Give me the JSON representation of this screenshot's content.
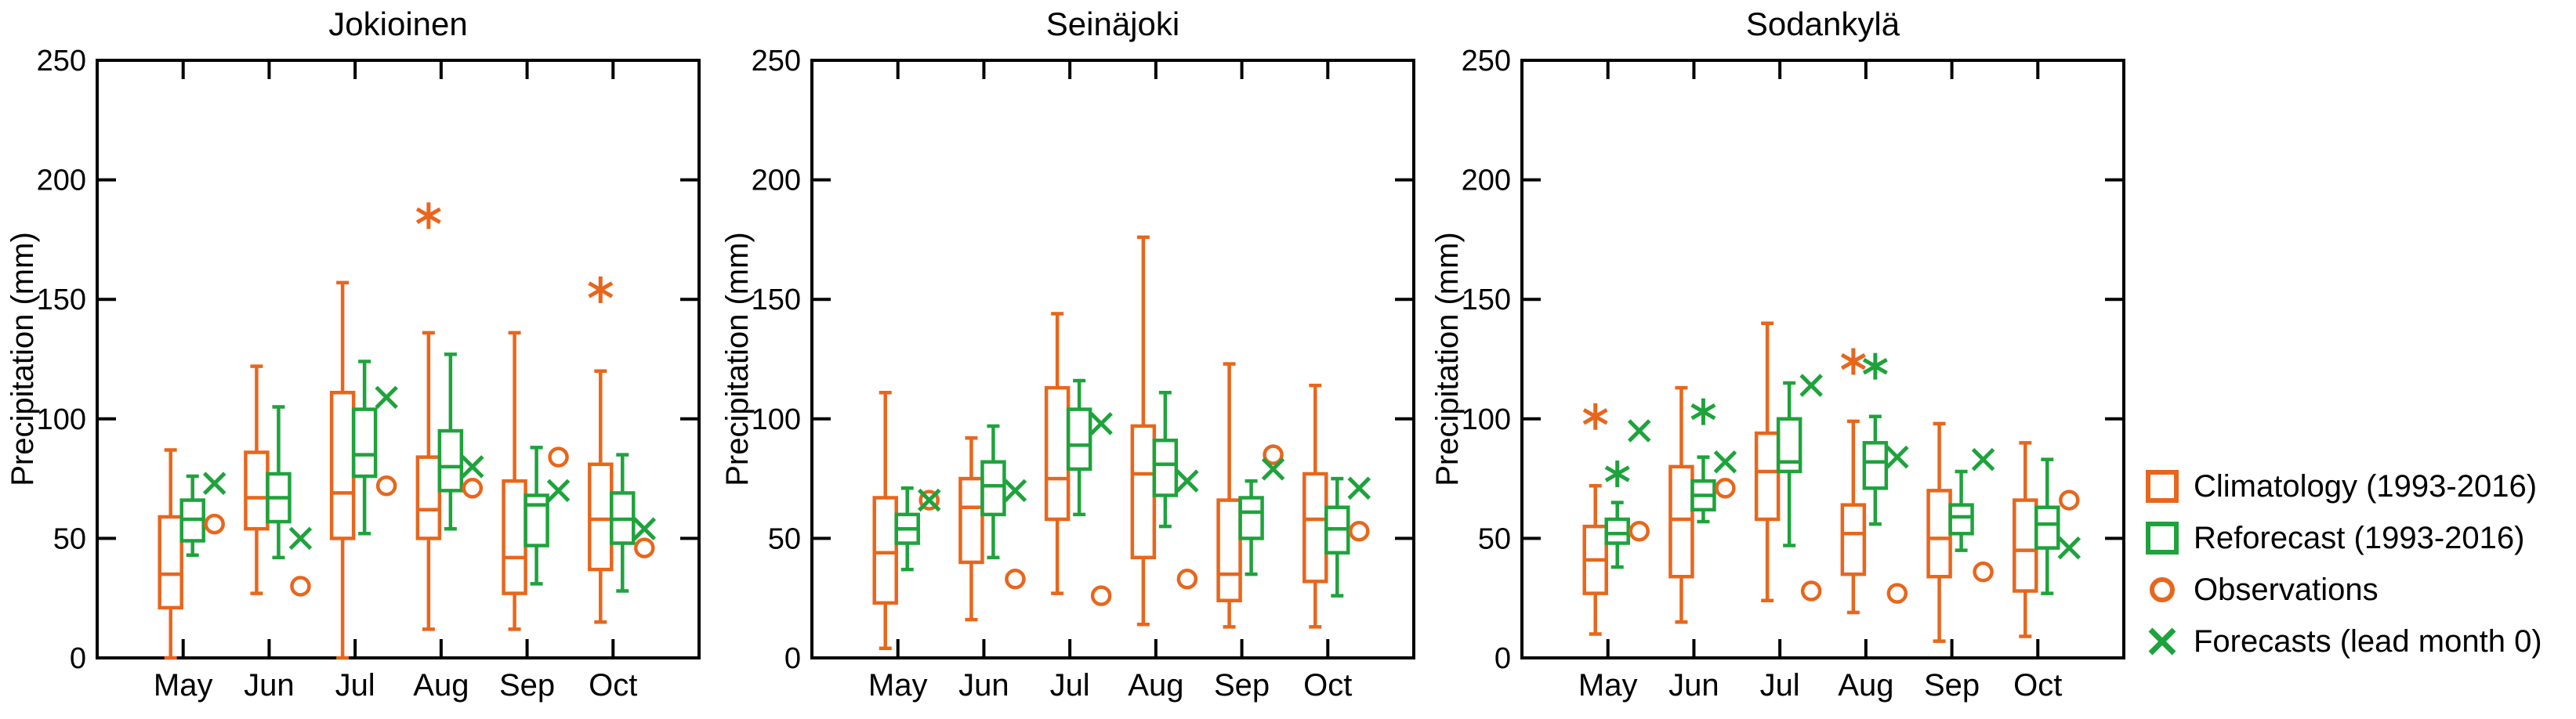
{
  "colors": {
    "climatology_orange": "#E8661C",
    "reforecast_green": "#1EA33C",
    "axis_black": "#000000",
    "background": "#FFFFFF"
  },
  "legend": {
    "items": [
      {
        "icon": "climatology-box-icon",
        "label": "Climatology (1993-2016)"
      },
      {
        "icon": "reforecast-box-icon",
        "label": "Reforecast (1993-2016)"
      },
      {
        "icon": "observations-circle-icon",
        "label": "Observations"
      },
      {
        "icon": "forecasts-x-icon",
        "label": "Forecasts (lead month 0)"
      }
    ]
  },
  "chart_data": {
    "type": "boxplot",
    "months": [
      "May",
      "Jun",
      "Jul",
      "Aug",
      "Sep",
      "Oct"
    ],
    "ylabel": "Precipitation (mm)",
    "ylim": [
      0,
      250
    ],
    "yticks": [
      0,
      50,
      100,
      150,
      200,
      250
    ],
    "grid": false,
    "legend_position": "right-outside",
    "panels": [
      {
        "title": "Jokioinen",
        "climatology": [
          {
            "lo": 0,
            "q1": 21,
            "med": 35,
            "q3": 59,
            "hi": 87,
            "out": []
          },
          {
            "lo": 27,
            "q1": 54,
            "med": 67,
            "q3": 86,
            "hi": 122,
            "out": []
          },
          {
            "lo": 0,
            "q1": 50,
            "med": 69,
            "q3": 111,
            "hi": 157,
            "out": []
          },
          {
            "lo": 12,
            "q1": 50,
            "med": 62,
            "q3": 84,
            "hi": 136,
            "out": [
              185
            ]
          },
          {
            "lo": 12,
            "q1": 27,
            "med": 42,
            "q3": 74,
            "hi": 136,
            "out": []
          },
          {
            "lo": 15,
            "q1": 37,
            "med": 58,
            "q3": 81,
            "hi": 120,
            "out": [
              154
            ]
          }
        ],
        "reforecast": [
          {
            "lo": 43,
            "q1": 49,
            "med": 58,
            "q3": 66,
            "hi": 76,
            "out": []
          },
          {
            "lo": 42,
            "q1": 57,
            "med": 67,
            "q3": 77,
            "hi": 105,
            "out": []
          },
          {
            "lo": 52,
            "q1": 76,
            "med": 85,
            "q3": 104,
            "hi": 124,
            "out": []
          },
          {
            "lo": 54,
            "q1": 70,
            "med": 80,
            "q3": 95,
            "hi": 127,
            "out": []
          },
          {
            "lo": 31,
            "q1": 47,
            "med": 64,
            "q3": 68,
            "hi": 88,
            "out": []
          },
          {
            "lo": 28,
            "q1": 48,
            "med": 58,
            "q3": 69,
            "hi": 85,
            "out": []
          }
        ],
        "observations": [
          56,
          30,
          72,
          71,
          84,
          46
        ],
        "forecasts": [
          73,
          50,
          109,
          80,
          70,
          54
        ]
      },
      {
        "title": "Seinäjoki",
        "climatology": [
          {
            "lo": 4,
            "q1": 23,
            "med": 44,
            "q3": 67,
            "hi": 111,
            "out": []
          },
          {
            "lo": 16,
            "q1": 40,
            "med": 63,
            "q3": 75,
            "hi": 92,
            "out": []
          },
          {
            "lo": 27,
            "q1": 58,
            "med": 75,
            "q3": 113,
            "hi": 144,
            "out": []
          },
          {
            "lo": 14,
            "q1": 42,
            "med": 77,
            "q3": 97,
            "hi": 176,
            "out": []
          },
          {
            "lo": 13,
            "q1": 24,
            "med": 35,
            "q3": 66,
            "hi": 123,
            "out": []
          },
          {
            "lo": 13,
            "q1": 32,
            "med": 58,
            "q3": 77,
            "hi": 114,
            "out": []
          }
        ],
        "reforecast": [
          {
            "lo": 37,
            "q1": 48,
            "med": 54,
            "q3": 60,
            "hi": 71,
            "out": []
          },
          {
            "lo": 42,
            "q1": 60,
            "med": 72,
            "q3": 82,
            "hi": 97,
            "out": []
          },
          {
            "lo": 60,
            "q1": 79,
            "med": 89,
            "q3": 104,
            "hi": 116,
            "out": []
          },
          {
            "lo": 55,
            "q1": 68,
            "med": 81,
            "q3": 91,
            "hi": 111,
            "out": []
          },
          {
            "lo": 35,
            "q1": 50,
            "med": 61,
            "q3": 67,
            "hi": 74,
            "out": []
          },
          {
            "lo": 26,
            "q1": 44,
            "med": 54,
            "q3": 63,
            "hi": 75,
            "out": []
          }
        ],
        "observations": [
          66,
          33,
          26,
          33,
          85,
          53
        ],
        "forecasts": [
          66,
          70,
          98,
          74,
          79,
          71
        ]
      },
      {
        "title": "Sodankylä",
        "climatology": [
          {
            "lo": 10,
            "q1": 27,
            "med": 41,
            "q3": 55,
            "hi": 72,
            "out": [
              101
            ]
          },
          {
            "lo": 15,
            "q1": 34,
            "med": 58,
            "q3": 80,
            "hi": 113,
            "out": []
          },
          {
            "lo": 24,
            "q1": 58,
            "med": 78,
            "q3": 94,
            "hi": 140,
            "out": []
          },
          {
            "lo": 19,
            "q1": 35,
            "med": 52,
            "q3": 64,
            "hi": 99,
            "out": [
              124
            ]
          },
          {
            "lo": 7,
            "q1": 34,
            "med": 50,
            "q3": 70,
            "hi": 98,
            "out": []
          },
          {
            "lo": 9,
            "q1": 28,
            "med": 45,
            "q3": 66,
            "hi": 90,
            "out": []
          }
        ],
        "reforecast": [
          {
            "lo": 38,
            "q1": 48,
            "med": 52,
            "q3": 58,
            "hi": 65,
            "out": [
              77
            ]
          },
          {
            "lo": 57,
            "q1": 62,
            "med": 68,
            "q3": 74,
            "hi": 84,
            "out": [
              103
            ]
          },
          {
            "lo": 47,
            "q1": 78,
            "med": 82,
            "q3": 100,
            "hi": 115,
            "out": []
          },
          {
            "lo": 56,
            "q1": 71,
            "med": 82,
            "q3": 90,
            "hi": 101,
            "out": [
              122
            ]
          },
          {
            "lo": 45,
            "q1": 52,
            "med": 59,
            "q3": 64,
            "hi": 78,
            "out": []
          },
          {
            "lo": 27,
            "q1": 46,
            "med": 56,
            "q3": 63,
            "hi": 83,
            "out": []
          }
        ],
        "observations": [
          53,
          71,
          28,
          27,
          36,
          66
        ],
        "forecasts": [
          95,
          82,
          114,
          84,
          83,
          46
        ]
      }
    ]
  }
}
